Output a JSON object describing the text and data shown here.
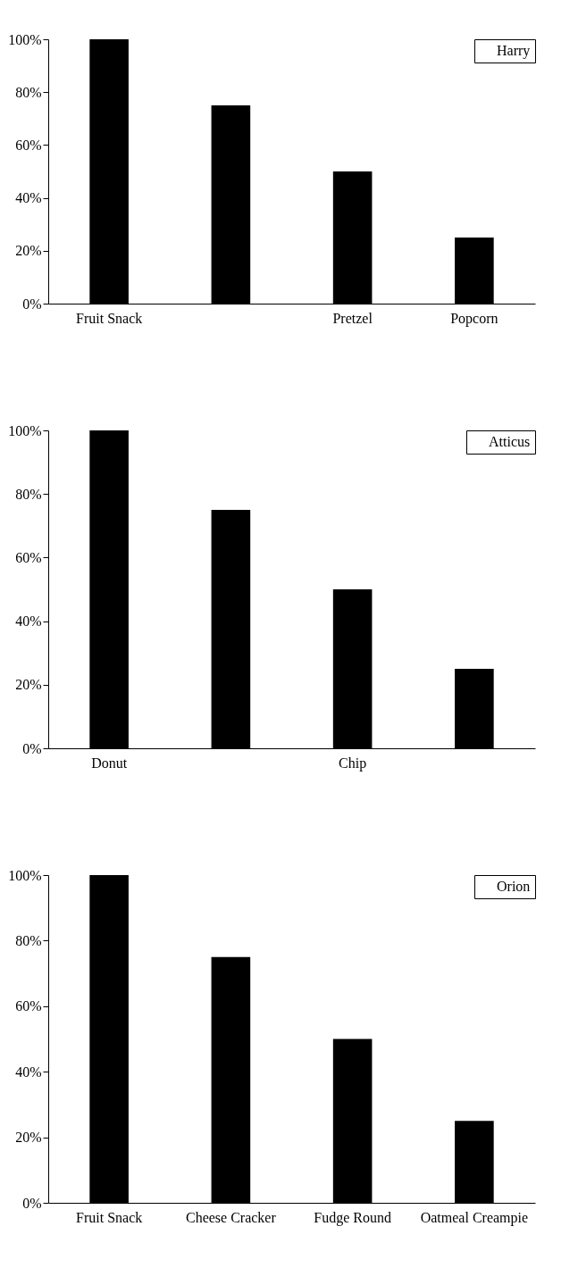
{
  "chart_data": [
    {
      "type": "bar",
      "categories": [
        "Fruit Snack",
        null,
        "Pretzel",
        "Popcorn"
      ],
      "series": [
        {
          "name": "Harry",
          "color": "#000000",
          "values": [
            100,
            75,
            50,
            25
          ]
        }
      ],
      "legend": "top right",
      "ylim": [
        0,
        100
      ],
      "yticks": [
        {
          "value": 0,
          "label": "0%"
        },
        {
          "value": 20,
          "label": "20%"
        },
        {
          "value": 40,
          "label": "40%"
        },
        {
          "value": 60,
          "label": "60%"
        },
        {
          "value": 80,
          "label": "80%"
        },
        {
          "value": 100,
          "label": "100%"
        }
      ]
    },
    {
      "type": "bar",
      "categories": [
        "Donut",
        null,
        "Chip",
        null
      ],
      "series": [
        {
          "name": "Atticus",
          "color": "#000000",
          "values": [
            100,
            75,
            50,
            25
          ]
        }
      ],
      "legend": "top right",
      "ylim": [
        0,
        100
      ],
      "yticks": [
        {
          "value": 0,
          "label": "0%"
        },
        {
          "value": 20,
          "label": "20%"
        },
        {
          "value": 40,
          "label": "40%"
        },
        {
          "value": 60,
          "label": "60%"
        },
        {
          "value": 80,
          "label": "80%"
        },
        {
          "value": 100,
          "label": "100%"
        }
      ]
    },
    {
      "type": "bar",
      "categories": [
        "Fruit Snack",
        "Cheese Cracker",
        "Fudge Round",
        "Oatmeal Creampie"
      ],
      "series": [
        {
          "name": "Orion",
          "color": "#000000",
          "values": [
            100,
            75,
            50,
            25
          ]
        }
      ],
      "legend": "top right",
      "ylim": [
        0,
        100
      ],
      "yticks": [
        {
          "value": 0,
          "label": "0%"
        },
        {
          "value": 20,
          "label": "20%"
        },
        {
          "value": 40,
          "label": "40%"
        },
        {
          "value": 60,
          "label": "60%"
        },
        {
          "value": 80,
          "label": "80%"
        },
        {
          "value": 100,
          "label": "100%"
        }
      ]
    }
  ]
}
